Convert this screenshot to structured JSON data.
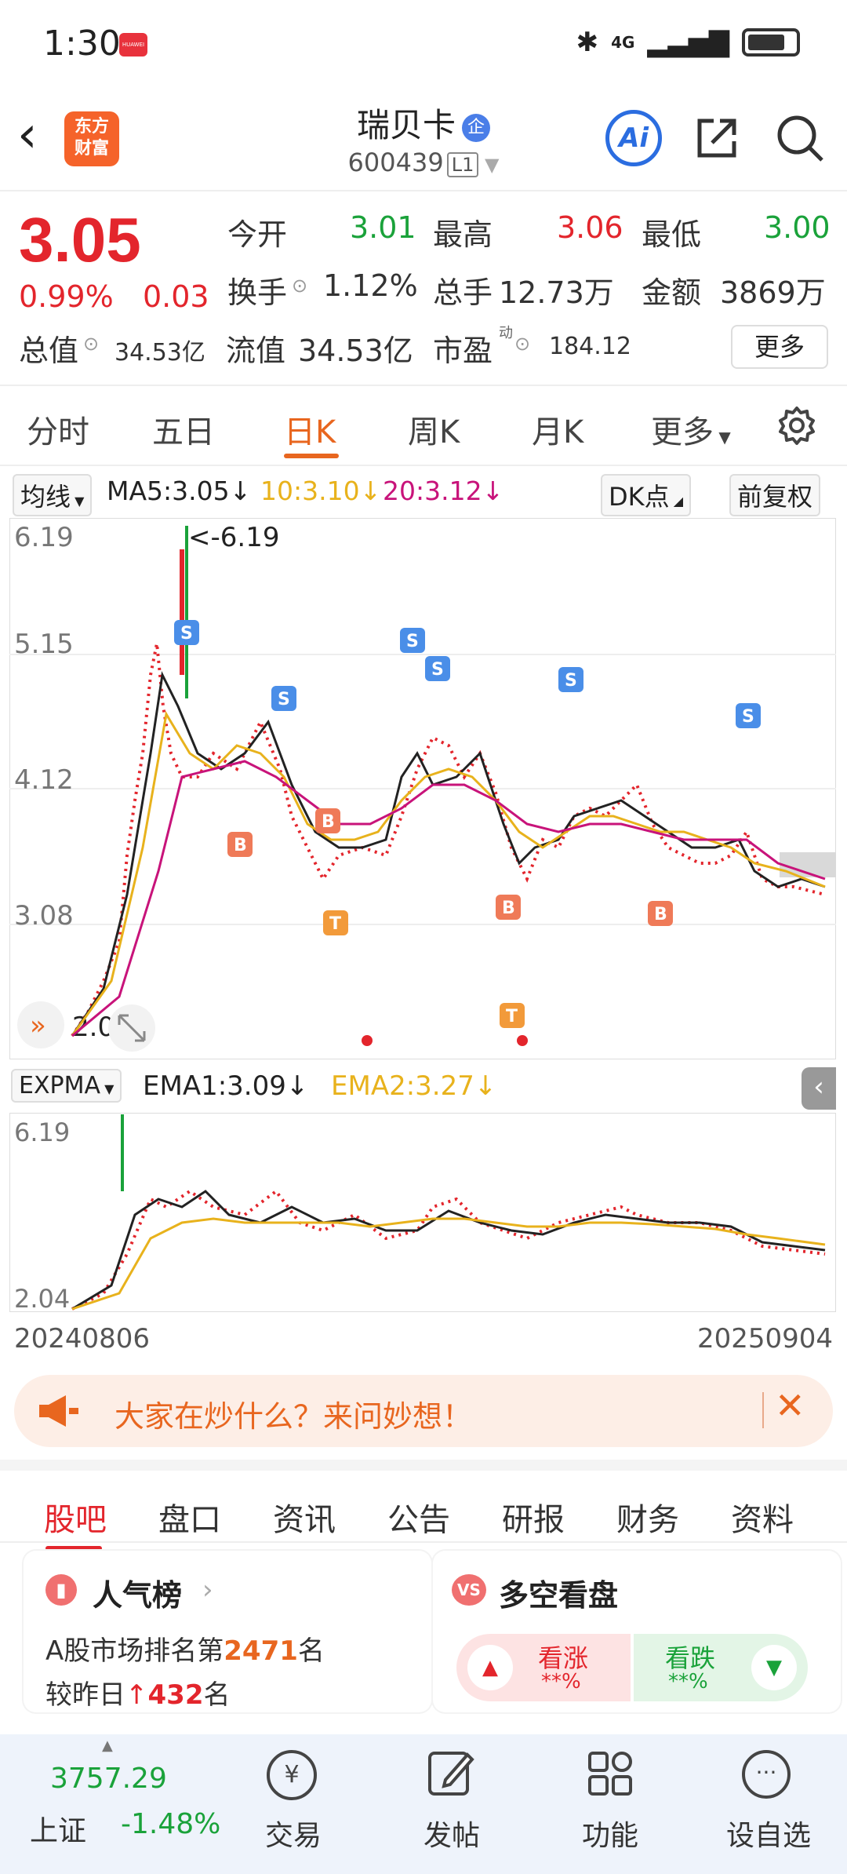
{
  "status": {
    "time": "1:30",
    "network": "4G"
  },
  "header": {
    "logo_text": "东方财富",
    "name": "瑞贝卡",
    "tag": "企",
    "code": "600439",
    "level": "L1",
    "ai_label": "Ai"
  },
  "quote": {
    "price": "3.05",
    "change_pct": "0.99%",
    "change": "0.03",
    "open_label": "今开",
    "open": "3.01",
    "high_label": "最高",
    "high": "3.06",
    "low_label": "最低",
    "low": "3.00",
    "turnover_label": "换手",
    "turnover": "1.12%",
    "volume_label": "总手",
    "volume": "12.73万",
    "amount_label": "金额",
    "amount": "3869万",
    "mktcap_label": "总值",
    "mktcap": "34.53亿",
    "float_label": "流值",
    "float": "34.53亿",
    "pe_label": "市盈",
    "pe_sup": "动",
    "pe": "184.12",
    "more": "更多"
  },
  "tabs": [
    "分时",
    "五日",
    "日K",
    "周K",
    "月K",
    "更多"
  ],
  "ma": {
    "selector": "均线",
    "ma5": "MA5:3.05",
    "ma10": "10:3.10",
    "ma20": "20:3.12",
    "dk": "DK点",
    "adjust": "前复权"
  },
  "main_chart": {
    "y_labels": [
      "6.19",
      "5.15",
      "4.12",
      "3.08"
    ],
    "max_note": "<-6.19",
    "min_note": "2.04"
  },
  "sub_chart": {
    "selector": "EXPMA",
    "ema1": "EMA1:3.09",
    "ema2": "EMA2:3.27",
    "y_top": "6.19",
    "y_bottom": "2.04"
  },
  "dates": {
    "start": "20240806",
    "end": "20250904"
  },
  "banner": {
    "text": "大家在炒什么？来问妙想！"
  },
  "section_tabs": [
    "股吧",
    "盘口",
    "资讯",
    "公告",
    "研报",
    "财务",
    "资料"
  ],
  "popularity": {
    "title": "人气榜",
    "rank_prefix": "A股市场排名第",
    "rank": "2471",
    "rank_suffix": "名",
    "change_prefix": "较昨日",
    "change": "432",
    "change_suffix": "名"
  },
  "sentiment": {
    "title": "多空看盘",
    "bull_label": "看涨",
    "bull_value": "**%",
    "bear_label": "看跌",
    "bear_value": "**%"
  },
  "bottom_nav": {
    "index_value": "3757.29",
    "index_name": "上证",
    "index_change": "-1.48%",
    "trade": "交易",
    "post": "发帖",
    "function": "功能",
    "watch": "设自选"
  },
  "colors": {
    "up": "#e3252c",
    "down": "#1aa23a",
    "accent": "#e8661f",
    "ma10": "#e8b21c",
    "ma20": "#c8137a"
  }
}
